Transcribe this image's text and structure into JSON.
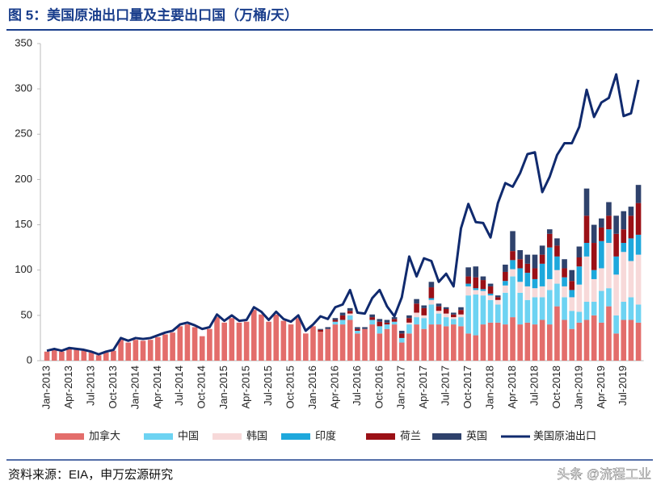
{
  "chart_data": {
    "type": "bar",
    "stacked": true,
    "title": "图 5：美国原油出口量及主要出口国（万桶/天）",
    "source": "资料来源：EIA，申万宏源研究",
    "watermark": "头条 @流程工业",
    "categories": [
      "Jan-2013",
      null,
      null,
      "Apr-2013",
      null,
      null,
      "Jul-2013",
      null,
      null,
      "Oct-2013",
      null,
      null,
      "Jan-2014",
      null,
      null,
      "Apr-2014",
      null,
      null,
      "Jul-2014",
      null,
      null,
      "Oct-2014",
      null,
      null,
      "Jan-2015",
      null,
      null,
      "Apr-2015",
      null,
      null,
      "Jul-2015",
      null,
      null,
      "Oct-2015",
      null,
      null,
      "Jan-2016",
      null,
      null,
      "Apr-2016",
      null,
      null,
      "Jul-2016",
      null,
      null,
      "Oct-2016",
      null,
      null,
      "Jan-2017",
      null,
      null,
      "Apr-2017",
      null,
      null,
      "Jul-2017",
      null,
      null,
      "Oct-2017",
      null,
      null,
      "Jan-2018",
      null,
      null,
      "Apr-2018",
      null,
      null,
      "Jul-2018",
      null,
      null,
      "Oct-2018",
      null,
      null,
      "Jan-2019",
      null,
      null,
      "Apr-2019",
      null,
      null,
      "Jul-2019",
      null,
      null
    ],
    "ylim": [
      0,
      350
    ],
    "yticks": [
      0,
      50,
      100,
      150,
      200,
      250,
      300,
      350
    ],
    "series": [
      {
        "name": "加拿大",
        "color": "#e36d6b",
        "values": [
          10,
          12,
          10,
          13,
          12,
          11,
          9,
          6,
          9,
          11,
          23,
          20,
          23,
          22,
          23,
          26,
          29,
          31,
          38,
          40,
          37,
          27,
          35,
          48,
          42,
          47,
          42,
          43,
          56,
          51,
          43,
          51,
          44,
          40,
          47,
          30,
          38,
          32,
          35,
          40,
          40,
          45,
          30,
          35,
          40,
          30,
          35,
          40,
          20,
          30,
          40,
          35,
          40,
          40,
          38,
          40,
          38,
          30,
          28,
          40,
          42,
          42,
          40,
          48,
          40,
          42,
          40,
          45,
          40,
          60,
          45,
          35,
          42,
          45,
          50,
          42,
          60,
          30,
          45,
          45,
          42
        ]
      },
      {
        "name": "中国",
        "color": "#6dd3f2",
        "values": [
          0,
          0,
          0,
          0,
          0,
          0,
          0,
          0,
          0,
          0,
          0,
          0,
          0,
          0,
          0,
          0,
          0,
          0,
          0,
          0,
          0,
          0,
          0,
          0,
          0,
          0,
          0,
          0,
          0,
          0,
          0,
          0,
          0,
          0,
          0,
          0,
          0,
          0,
          0,
          3,
          5,
          5,
          3,
          0,
          5,
          8,
          5,
          3,
          5,
          10,
          8,
          12,
          22,
          12,
          10,
          6,
          10,
          42,
          45,
          32,
          25,
          20,
          35,
          45,
          35,
          25,
          30,
          25,
          38,
          25,
          25,
          20,
          12,
          20,
          15,
          35,
          20,
          20,
          20,
          25,
          20
        ]
      },
      {
        "name": "韩国",
        "color": "#f7d9d9",
        "values": [
          0,
          0,
          0,
          0,
          0,
          0,
          0,
          0,
          0,
          0,
          0,
          0,
          0,
          0,
          0,
          0,
          0,
          0,
          0,
          0,
          0,
          0,
          0,
          0,
          0,
          0,
          0,
          0,
          0,
          0,
          0,
          0,
          0,
          0,
          0,
          0,
          0,
          0,
          0,
          0,
          0,
          2,
          0,
          0,
          0,
          0,
          0,
          0,
          0,
          2,
          5,
          3,
          5,
          3,
          4,
          2,
          3,
          10,
          5,
          5,
          5,
          5,
          8,
          8,
          12,
          15,
          10,
          12,
          12,
          15,
          12,
          15,
          30,
          50,
          25,
          25,
          50,
          45,
          55,
          40,
          55
        ]
      },
      {
        "name": "印度",
        "color": "#1ea8dc",
        "values": [
          0,
          0,
          0,
          0,
          0,
          0,
          0,
          0,
          0,
          0,
          0,
          0,
          0,
          0,
          0,
          0,
          0,
          0,
          0,
          0,
          0,
          0,
          0,
          0,
          0,
          0,
          0,
          0,
          0,
          0,
          0,
          0,
          0,
          0,
          0,
          0,
          0,
          0,
          0,
          0,
          0,
          0,
          0,
          0,
          0,
          0,
          0,
          0,
          0,
          0,
          0,
          0,
          2,
          0,
          0,
          0,
          0,
          3,
          2,
          2,
          2,
          0,
          5,
          10,
          15,
          15,
          10,
          25,
          35,
          15,
          10,
          8,
          20,
          15,
          10,
          30,
          15,
          20,
          10,
          25,
          22
        ]
      },
      {
        "name": "荷兰",
        "color": "#9b1016",
        "values": [
          0,
          0,
          0,
          0,
          0,
          0,
          0,
          0,
          0,
          0,
          0,
          0,
          0,
          0,
          0,
          0,
          0,
          0,
          0,
          0,
          0,
          0,
          0,
          0,
          0,
          0,
          0,
          0,
          0,
          0,
          0,
          0,
          0,
          0,
          0,
          0,
          0,
          2,
          0,
          2,
          5,
          3,
          2,
          0,
          3,
          5,
          2,
          3,
          5,
          5,
          10,
          8,
          12,
          5,
          5,
          3,
          5,
          8,
          12,
          10,
          8,
          3,
          10,
          10,
          10,
          10,
          12,
          10,
          15,
          12,
          10,
          10,
          10,
          30,
          30,
          15,
          15,
          25,
          15,
          25,
          35
        ]
      },
      {
        "name": "英国",
        "color": "#2f426c",
        "values": [
          0,
          0,
          0,
          0,
          0,
          0,
          0,
          0,
          0,
          0,
          0,
          0,
          0,
          0,
          0,
          0,
          0,
          0,
          0,
          0,
          0,
          0,
          0,
          0,
          0,
          0,
          0,
          0,
          0,
          0,
          0,
          0,
          0,
          0,
          0,
          0,
          0,
          1,
          2,
          2,
          3,
          3,
          2,
          2,
          3,
          3,
          3,
          2,
          3,
          3,
          5,
          3,
          6,
          3,
          2,
          2,
          3,
          10,
          12,
          4,
          3,
          2,
          8,
          22,
          10,
          10,
          15,
          10,
          5,
          8,
          10,
          12,
          12,
          30,
          20,
          10,
          15,
          20,
          20,
          10,
          20
        ]
      },
      {
        "name": "美国原油出口",
        "type": "line",
        "color": "#102a6e",
        "values": [
          11,
          13,
          11,
          14,
          13,
          12,
          10,
          7,
          10,
          12,
          25,
          22,
          25,
          24,
          25,
          28,
          31,
          33,
          40,
          42,
          39,
          35,
          37,
          51,
          44,
          50,
          44,
          45,
          59,
          54,
          45,
          54,
          46,
          43,
          50,
          33,
          40,
          49,
          46,
          59,
          62,
          78,
          53,
          52,
          69,
          78,
          60,
          49,
          70,
          115,
          93,
          113,
          110,
          87,
          96,
          82,
          146,
          173,
          153,
          152,
          136,
          174,
          196,
          192,
          207,
          228,
          230,
          186,
          203,
          227,
          240,
          240,
          258,
          299,
          269,
          285,
          290,
          316,
          270,
          273,
          310
        ]
      }
    ]
  }
}
